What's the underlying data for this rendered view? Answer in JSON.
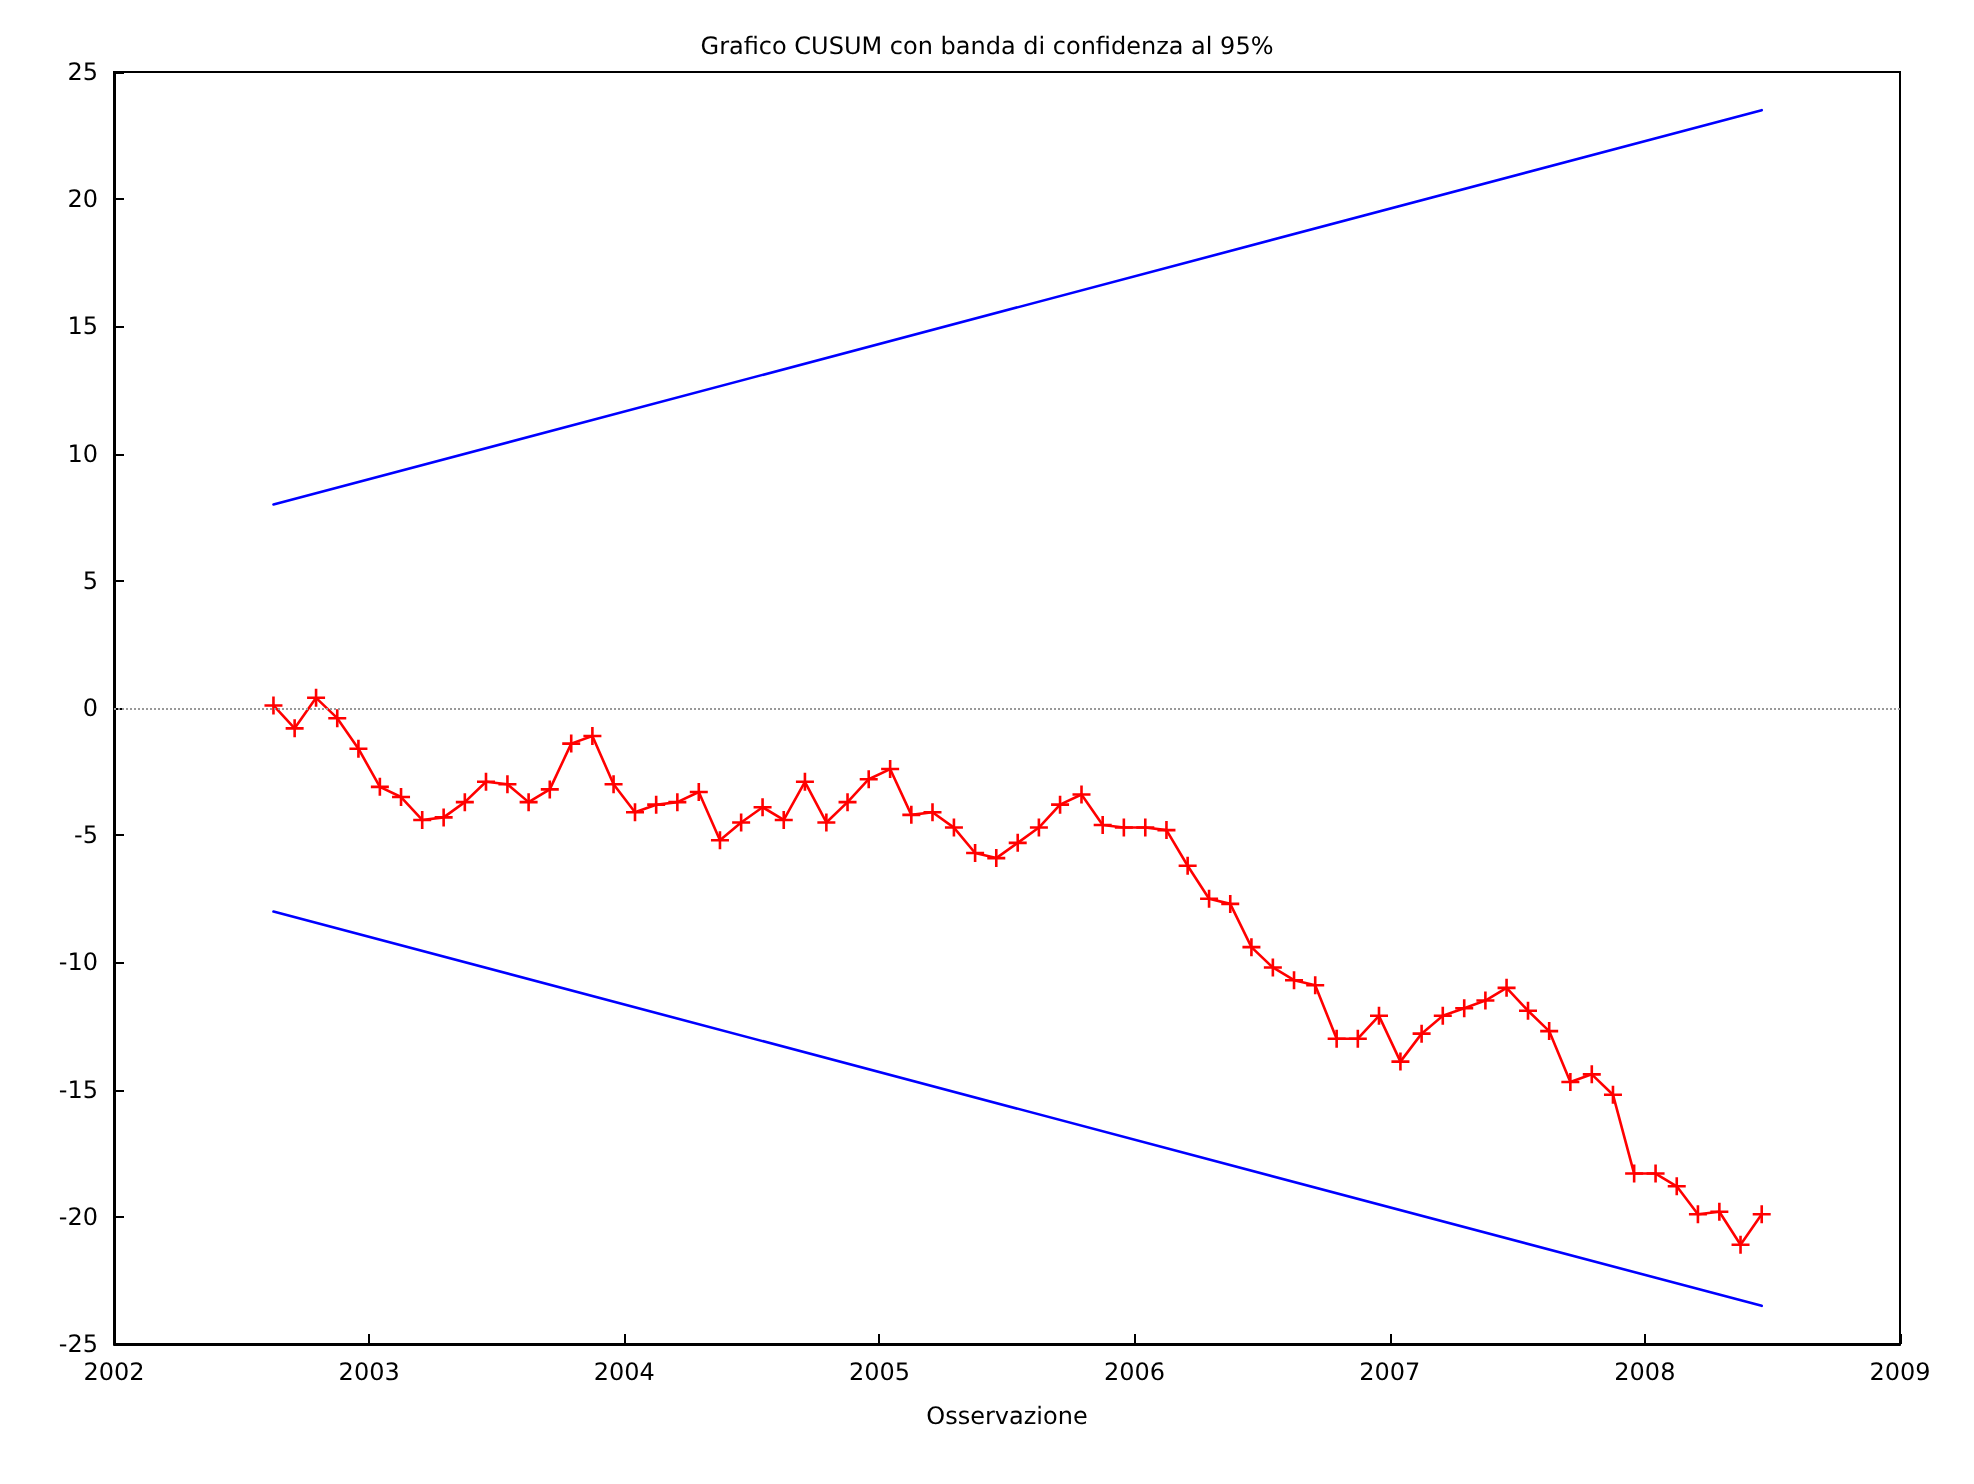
{
  "chart_data": {
    "type": "line",
    "title": "Grafico CUSUM con banda di confidenza al 95%",
    "xlabel": "Osservazione",
    "xlim": [
      2002,
      2009
    ],
    "xticks": [
      2002,
      2003,
      2004,
      2005,
      2006,
      2007,
      2008,
      2009
    ],
    "ylim": [
      -25,
      25
    ],
    "yticks": [
      -25,
      -20,
      -15,
      -10,
      -5,
      0,
      5,
      10,
      15,
      20,
      25
    ],
    "grid": false,
    "line_style": "solid",
    "ref_lines": [
      {
        "axis": "y",
        "value": 0,
        "color": "#999999",
        "line_style": "dotted"
      }
    ],
    "series": [
      {
        "color": "#ff0000",
        "marker": "cross",
        "x": [
          2002.625,
          2002.708,
          2002.792,
          2002.875,
          2002.958,
          2003.042,
          2003.125,
          2003.208,
          2003.292,
          2003.375,
          2003.458,
          2003.542,
          2003.625,
          2003.708,
          2003.792,
          2003.875,
          2003.958,
          2004.042,
          2004.125,
          2004.208,
          2004.292,
          2004.375,
          2004.458,
          2004.542,
          2004.625,
          2004.708,
          2004.792,
          2004.875,
          2004.958,
          2005.042,
          2005.125,
          2005.208,
          2005.292,
          2005.375,
          2005.458,
          2005.542,
          2005.625,
          2005.708,
          2005.792,
          2005.875,
          2005.958,
          2006.042,
          2006.125,
          2006.208,
          2006.292,
          2006.375,
          2006.458,
          2006.542,
          2006.625,
          2006.708,
          2006.792,
          2006.875,
          2006.958,
          2007.042,
          2007.125,
          2007.208,
          2007.292,
          2007.375,
          2007.458,
          2007.542,
          2007.625,
          2007.708,
          2007.792,
          2007.875,
          2007.958,
          2008.042,
          2008.125,
          2008.208,
          2008.292,
          2008.375,
          2008.458
        ],
        "values": [
          0.1,
          -0.8,
          0.4,
          -0.4,
          -1.6,
          -3.1,
          -3.5,
          -4.4,
          -4.3,
          -3.7,
          -2.9,
          -3.0,
          -3.7,
          -3.2,
          -1.4,
          -1.1,
          -3.0,
          -4.1,
          -3.8,
          -3.7,
          -3.3,
          -5.2,
          -4.5,
          -3.9,
          -4.4,
          -2.9,
          -4.5,
          -3.7,
          -2.8,
          -2.4,
          -4.2,
          -4.1,
          -4.7,
          -5.7,
          -5.9,
          -5.3,
          -4.7,
          -3.8,
          -3.4,
          -4.6,
          -4.7,
          -4.7,
          -4.8,
          -6.2,
          -7.5,
          -7.7,
          -9.4,
          -10.2,
          -10.7,
          -10.9,
          -13.0,
          -13.0,
          -12.1,
          -13.9,
          -12.8,
          -12.1,
          -11.8,
          -11.5,
          -11.0,
          -11.9,
          -12.7,
          -14.7,
          -14.4,
          -15.2,
          -18.3,
          -18.3,
          -18.8,
          -19.9,
          -19.8,
          -21.1,
          -19.9
        ]
      },
      {
        "color": "#0000ff",
        "marker": "none",
        "x": [
          2002.625,
          2008.458
        ],
        "values": [
          8.0,
          23.5
        ]
      },
      {
        "color": "#0000ff",
        "marker": "none",
        "x": [
          2002.625,
          2008.458
        ],
        "values": [
          -8.0,
          -23.5
        ]
      }
    ]
  }
}
